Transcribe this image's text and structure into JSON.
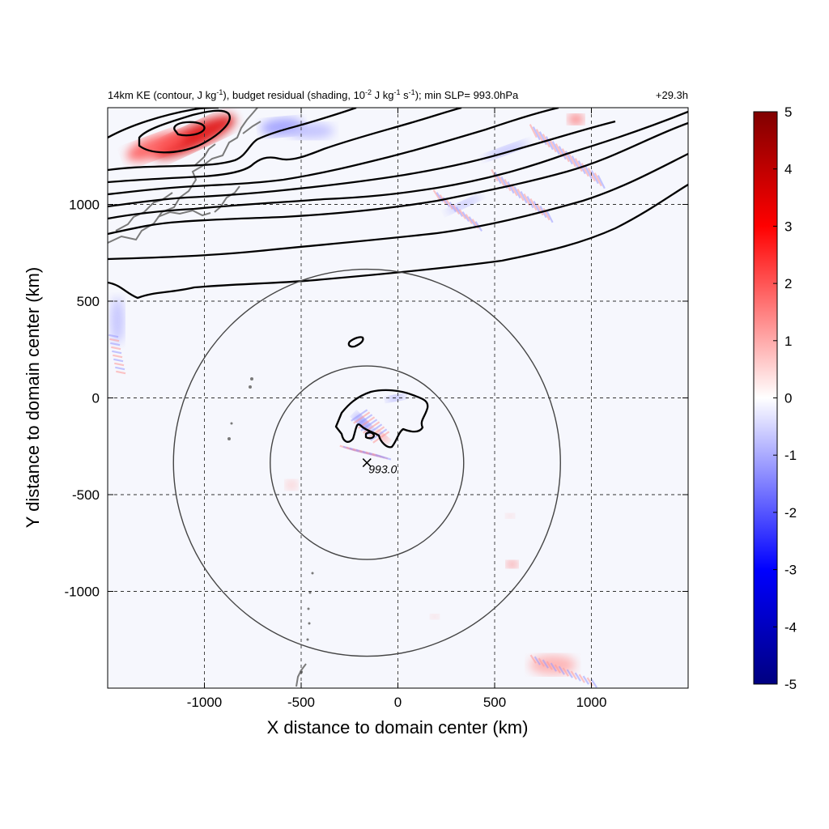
{
  "chart_data": {
    "type": "heatmap",
    "title_left_parts": [
      "14km KE (contour, J kg",
      "-1",
      "), budget residual (shading, 10",
      "-2",
      " J kg",
      "-1",
      " s",
      "-1",
      "); min SLP= 993.0hPa"
    ],
    "title_right": "+29.3h",
    "xlabel": "X distance to domain center (km)",
    "ylabel": "Y distance to domain center (km)",
    "xlim": [
      -1500,
      1500
    ],
    "ylim": [
      -1500,
      1500
    ],
    "x_ticks": [
      -1000,
      -500,
      0,
      500,
      1000
    ],
    "y_ticks": [
      -1000,
      -500,
      0,
      500,
      1000
    ],
    "grid": true,
    "colorbar": {
      "min": -5,
      "max": 5,
      "ticks": [
        5,
        4,
        3,
        2,
        1,
        0,
        -1,
        -2,
        -3,
        -4,
        -5
      ],
      "colormap": [
        "#000080",
        "#0000ff",
        "#ffffff",
        "#ff0000",
        "#800000"
      ]
    },
    "storm_center": {
      "x": -160,
      "y": -335,
      "label": "993.0"
    },
    "range_rings_km": [
      500,
      1000
    ],
    "shading_features": [
      {
        "x": -1050,
        "y": 1350,
        "value": 3.5,
        "rx": 230,
        "ry": 60,
        "rot": -25
      },
      {
        "x": -1250,
        "y": 1300,
        "value": 2.0,
        "rx": 160,
        "ry": 55,
        "rot": -20
      },
      {
        "x": -180,
        "y": -130,
        "value": -2.0,
        "rx": 60,
        "ry": 20,
        "rot": 45
      },
      {
        "x": -80,
        "y": -200,
        "value": 2.0,
        "rx": 40,
        "ry": 14,
        "rot": 40
      },
      {
        "x": -10,
        "y": 0,
        "value": -1.5,
        "rx": 50,
        "ry": 14,
        "rot": -10
      },
      {
        "x": 590,
        "y": -860,
        "value": 2.0,
        "rx": 28,
        "ry": 18,
        "rot": 0
      },
      {
        "x": 580,
        "y": -610,
        "value": 1.0,
        "rx": 22,
        "ry": 12,
        "rot": 0
      },
      {
        "x": 190,
        "y": -1130,
        "value": 1.0,
        "rx": 22,
        "ry": 12,
        "rot": 0
      },
      {
        "x": -550,
        "y": -450,
        "value": 0.8,
        "rx": 30,
        "ry": 25,
        "rot": 0
      },
      {
        "x": 920,
        "y": 1440,
        "value": 2.0,
        "rx": 40,
        "ry": 25,
        "rot": 0
      },
      {
        "x": 560,
        "y": 1280,
        "value": -1.0,
        "rx": 120,
        "ry": 20,
        "rot": -20
      },
      {
        "x": 340,
        "y": 1000,
        "value": -1.0,
        "rx": 100,
        "ry": 16,
        "rot": -25
      },
      {
        "x": -600,
        "y": 1400,
        "value": -1.2,
        "rx": 110,
        "ry": 45,
        "rot": -5
      },
      {
        "x": -450,
        "y": 1380,
        "value": -0.8,
        "rx": 120,
        "ry": 40,
        "rot": 0
      },
      {
        "x": 800,
        "y": -1380,
        "value": 1.0,
        "rx": 120,
        "ry": 50,
        "rot": 0
      },
      {
        "x": -1450,
        "y": 400,
        "value": -0.8,
        "rx": 35,
        "ry": 120,
        "rot": 0
      }
    ]
  }
}
